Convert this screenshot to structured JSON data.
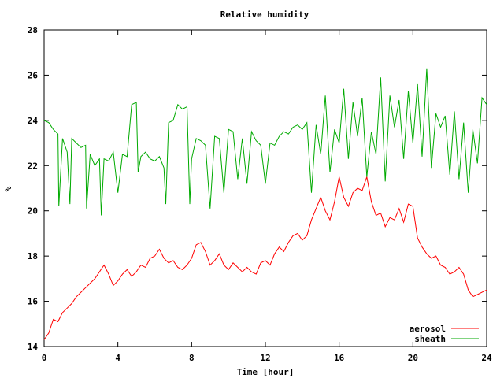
{
  "chart_data": {
    "type": "line",
    "title": "Relative humidity",
    "xlabel": "Time [hour]",
    "ylabel": "%",
    "xlim": [
      0,
      24
    ],
    "ylim": [
      14,
      28
    ],
    "xticks": [
      0,
      4,
      8,
      12,
      16,
      20,
      24
    ],
    "yticks": [
      14,
      16,
      18,
      20,
      22,
      24,
      26,
      28
    ],
    "grid": false,
    "legend_position": "bottom-right",
    "series": [
      {
        "name": "aerosol",
        "color": "#ff0000",
        "x": [
          0.0,
          0.25,
          0.5,
          0.75,
          1.0,
          1.25,
          1.5,
          1.75,
          2.0,
          2.25,
          2.5,
          2.75,
          3.0,
          3.25,
          3.5,
          3.75,
          4.0,
          4.25,
          4.5,
          4.75,
          5.0,
          5.25,
          5.5,
          5.75,
          6.0,
          6.25,
          6.5,
          6.75,
          7.0,
          7.25,
          7.5,
          7.75,
          8.0,
          8.25,
          8.5,
          8.75,
          9.0,
          9.25,
          9.5,
          9.75,
          10.0,
          10.25,
          10.5,
          10.75,
          11.0,
          11.25,
          11.5,
          11.75,
          12.0,
          12.25,
          12.5,
          12.75,
          13.0,
          13.25,
          13.5,
          13.75,
          14.0,
          14.25,
          14.5,
          14.75,
          15.0,
          15.25,
          15.5,
          15.75,
          16.0,
          16.25,
          16.5,
          16.75,
          17.0,
          17.25,
          17.5,
          17.75,
          18.0,
          18.25,
          18.5,
          18.75,
          19.0,
          19.25,
          19.5,
          19.75,
          20.0,
          20.25,
          20.5,
          20.75,
          21.0,
          21.25,
          21.5,
          21.75,
          22.0,
          22.25,
          22.5,
          22.75,
          23.0,
          23.25,
          23.5,
          23.75,
          24.0
        ],
        "values": [
          14.3,
          14.6,
          15.2,
          15.1,
          15.5,
          15.7,
          15.9,
          16.2,
          16.4,
          16.6,
          16.8,
          17.0,
          17.3,
          17.6,
          17.2,
          16.7,
          16.9,
          17.2,
          17.4,
          17.1,
          17.3,
          17.6,
          17.5,
          17.9,
          18.0,
          18.3,
          17.9,
          17.7,
          17.8,
          17.5,
          17.4,
          17.6,
          17.9,
          18.5,
          18.6,
          18.2,
          17.6,
          17.8,
          18.1,
          17.6,
          17.4,
          17.7,
          17.5,
          17.3,
          17.5,
          17.3,
          17.2,
          17.7,
          17.8,
          17.6,
          18.1,
          18.4,
          18.2,
          18.6,
          18.9,
          19.0,
          18.7,
          18.9,
          19.6,
          20.1,
          20.6,
          20.0,
          19.6,
          20.4,
          21.5,
          20.6,
          20.2,
          20.8,
          21.0,
          20.9,
          21.5,
          20.4,
          19.8,
          19.9,
          19.3,
          19.7,
          19.6,
          20.1,
          19.5,
          20.3,
          20.2,
          18.8,
          18.4,
          18.1,
          17.9,
          18.0,
          17.6,
          17.5,
          17.2,
          17.3,
          17.5,
          17.2,
          16.5,
          16.2,
          16.3,
          16.4,
          16.5
        ]
      },
      {
        "name": "sheath",
        "color": "#00aa00",
        "x": [
          0.0,
          0.25,
          0.5,
          0.75,
          0.8,
          1.0,
          1.25,
          1.4,
          1.5,
          1.75,
          2.0,
          2.25,
          2.3,
          2.5,
          2.75,
          3.0,
          3.1,
          3.25,
          3.5,
          3.75,
          4.0,
          4.25,
          4.5,
          4.75,
          5.0,
          5.1,
          5.25,
          5.5,
          5.75,
          6.0,
          6.25,
          6.5,
          6.6,
          6.75,
          7.0,
          7.25,
          7.5,
          7.75,
          7.9,
          8.0,
          8.25,
          8.5,
          8.75,
          9.0,
          9.25,
          9.5,
          9.75,
          10.0,
          10.25,
          10.5,
          10.75,
          11.0,
          11.25,
          11.5,
          11.75,
          12.0,
          12.25,
          12.5,
          12.75,
          13.0,
          13.25,
          13.5,
          13.75,
          14.0,
          14.25,
          14.5,
          14.75,
          15.0,
          15.25,
          15.5,
          15.75,
          16.0,
          16.25,
          16.5,
          16.75,
          17.0,
          17.25,
          17.5,
          17.75,
          18.0,
          18.25,
          18.5,
          18.75,
          19.0,
          19.25,
          19.5,
          19.75,
          20.0,
          20.25,
          20.5,
          20.75,
          21.0,
          21.25,
          21.5,
          21.75,
          22.0,
          22.25,
          22.5,
          22.75,
          23.0,
          23.25,
          23.5,
          23.75,
          24.0
        ],
        "values": [
          24.0,
          23.9,
          23.6,
          23.4,
          20.2,
          23.2,
          22.6,
          20.3,
          23.2,
          23.0,
          22.8,
          22.9,
          20.1,
          22.5,
          22.0,
          22.3,
          19.8,
          22.3,
          22.2,
          22.6,
          20.8,
          22.5,
          22.4,
          24.7,
          24.8,
          21.7,
          22.4,
          22.6,
          22.3,
          22.2,
          22.4,
          21.9,
          20.3,
          23.9,
          24.0,
          24.7,
          24.5,
          24.6,
          20.3,
          22.3,
          23.2,
          23.1,
          22.9,
          20.1,
          23.3,
          23.2,
          20.8,
          23.6,
          23.5,
          21.4,
          23.2,
          21.2,
          23.5,
          23.1,
          22.9,
          21.2,
          23.0,
          22.9,
          23.3,
          23.5,
          23.4,
          23.7,
          23.8,
          23.6,
          23.9,
          20.8,
          23.8,
          22.5,
          25.1,
          21.7,
          23.6,
          23.0,
          25.4,
          22.3,
          24.8,
          23.3,
          25.0,
          21.5,
          23.5,
          22.5,
          25.9,
          21.3,
          25.1,
          23.7,
          24.9,
          22.3,
          25.3,
          23.0,
          25.6,
          22.4,
          26.3,
          21.9,
          24.3,
          23.7,
          24.2,
          21.6,
          24.4,
          21.4,
          23.9,
          20.8,
          23.6,
          22.1,
          25.0,
          24.7
        ]
      }
    ]
  }
}
